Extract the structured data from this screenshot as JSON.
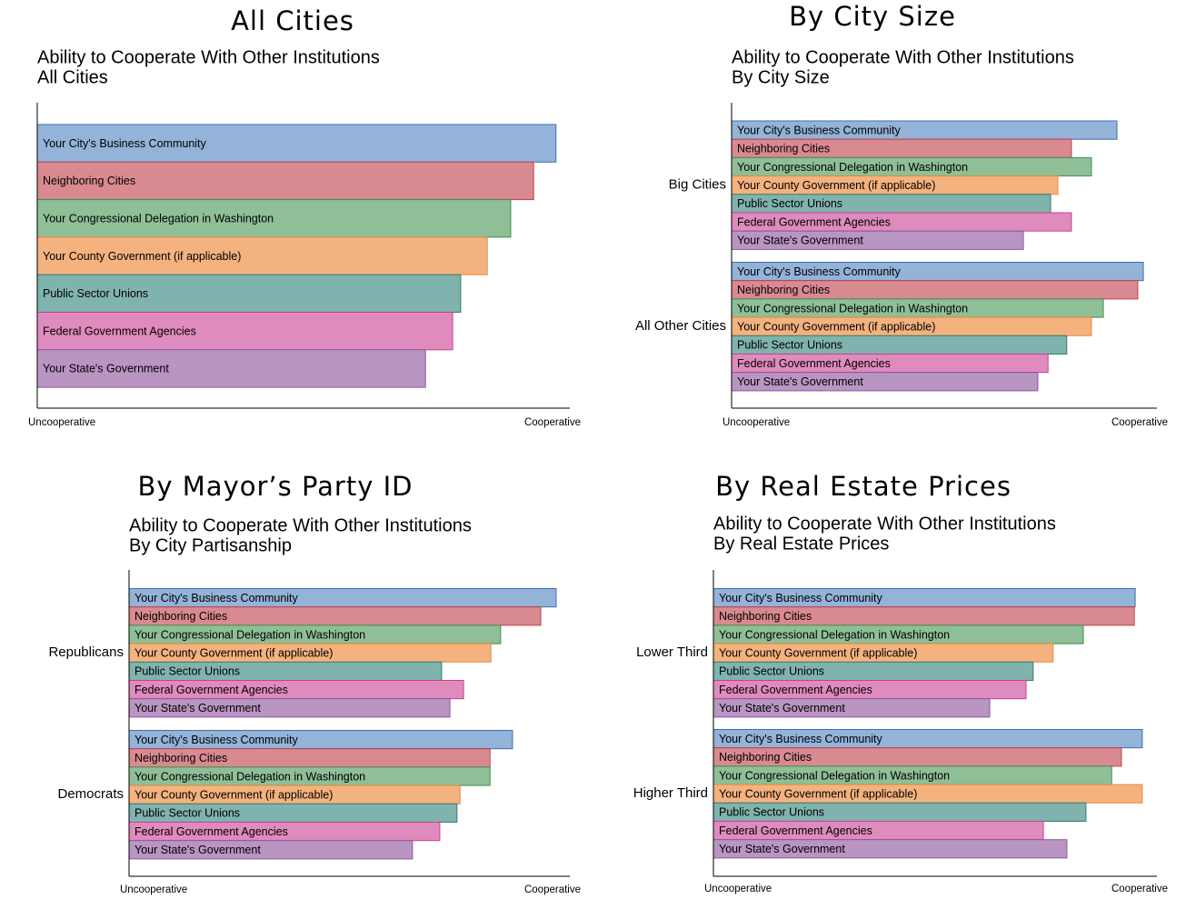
{
  "chart_data": [
    {
      "type": "bar",
      "heading": "All Cities",
      "title": "Ability to Cooperate With Other Institutions",
      "subtitle": "All Cities",
      "categories": [
        "Your City's Business Community",
        "Neighboring Cities",
        "Your Congressional Delegation in Washington",
        "Your County Government (if applicable)",
        "Public Sector Unions",
        "Federal Government Agencies",
        "Your State's Government"
      ],
      "colors": [
        "#93b3d8",
        "#d98a91",
        "#8fbf97",
        "#f4b27f",
        "#80b3ae",
        "#e08bbd",
        "#b995c2"
      ],
      "edge_colors": [
        "#3d6fb0",
        "#c0404e",
        "#3f8f52",
        "#ec8a3c",
        "#2f7d72",
        "#c8408f",
        "#8e55a0"
      ],
      "values": [
        97.4,
        93.2,
        88.9,
        84.5,
        79.5,
        78,
        72.9
      ],
      "xlim": [
        0,
        100
      ],
      "xticks": [
        {
          "value": 0,
          "label": "Uncooperative"
        },
        {
          "value": 100,
          "label": "Cooperative"
        }
      ]
    },
    {
      "type": "bar",
      "heading": "By City Size",
      "title": "Ability to Cooperate With Other Institutions",
      "subtitle": "By City Size",
      "categories": [
        "Your City's Business Community",
        "Neighboring Cities",
        "Your Congressional Delegation in Washington",
        "Your County Government (if applicable)",
        "Public Sector Unions",
        "Federal Government Agencies",
        "Your State's Government"
      ],
      "colors": [
        "#93b3d8",
        "#d98a91",
        "#8fbf97",
        "#f4b27f",
        "#80b3ae",
        "#e08bbd",
        "#b995c2"
      ],
      "edge_colors": [
        "#3d6fb0",
        "#c0404e",
        "#3f8f52",
        "#ec8a3c",
        "#2f7d72",
        "#c8408f",
        "#8e55a0"
      ],
      "series": [
        {
          "name": "Big Cities",
          "values": [
            90.6,
            79.9,
            84.6,
            76.7,
            75,
            79.9,
            68.6
          ]
        },
        {
          "name": "All Other Cities",
          "values": [
            96.8,
            95.5,
            87.4,
            84.6,
            78.8,
            74.4,
            72
          ]
        }
      ],
      "xlim": [
        0,
        100
      ],
      "xticks": [
        {
          "value": 0,
          "label": "Uncooperative"
        },
        {
          "value": 100,
          "label": "Cooperative"
        }
      ]
    },
    {
      "type": "bar",
      "heading": "By Mayor’s Party ID",
      "title": "Ability to Cooperate With Other Institutions",
      "subtitle": "By City Partisanship",
      "categories": [
        "Your City's Business Community",
        "Neighboring Cities",
        "Your Congressional Delegation in Washington",
        "Your County Government (if applicable)",
        "Public Sector Unions",
        "Federal Government Agencies",
        "Your State's Government"
      ],
      "colors": [
        "#93b3d8",
        "#d98a91",
        "#8fbf97",
        "#f4b27f",
        "#80b3ae",
        "#e08bbd",
        "#b995c2"
      ],
      "edge_colors": [
        "#3d6fb0",
        "#c0404e",
        "#3f8f52",
        "#ec8a3c",
        "#2f7d72",
        "#c8408f",
        "#8e55a0"
      ],
      "series": [
        {
          "name": "Republicans",
          "values": [
            96.9,
            93.4,
            84.3,
            82.1,
            70.9,
            75.9,
            72.8
          ]
        },
        {
          "name": "Democrats",
          "values": [
            87,
            81.9,
            81.9,
            75.1,
            74.4,
            70.5,
            64.3
          ]
        }
      ],
      "xlim": [
        0,
        100
      ],
      "xticks": [
        {
          "value": 0,
          "label": "Uncooperative"
        },
        {
          "value": 100,
          "label": "Cooperative"
        }
      ]
    },
    {
      "type": "bar",
      "heading": "By Real Estate Prices",
      "title": "Ability to Cooperate With Other Institutions",
      "subtitle": "By Real Estate Prices",
      "categories": [
        "Your City's Business Community",
        "Neighboring Cities",
        "Your Congressional Delegation in Washington",
        "Your County Government (if applicable)",
        "Public Sector Unions",
        "Federal Government Agencies",
        "Your State's Government"
      ],
      "colors": [
        "#93b3d8",
        "#d98a91",
        "#8fbf97",
        "#f4b27f",
        "#80b3ae",
        "#e08bbd",
        "#b995c2"
      ],
      "edge_colors": [
        "#3d6fb0",
        "#c0404e",
        "#3f8f52",
        "#ec8a3c",
        "#2f7d72",
        "#c8408f",
        "#8e55a0"
      ],
      "series": [
        {
          "name": "Lower Third",
          "values": [
            95.1,
            94.9,
            83.4,
            76.6,
            72.1,
            70.5,
            62.3
          ]
        },
        {
          "name": "Higher Third",
          "values": [
            96.7,
            92,
            89.8,
            96.7,
            84,
            74.4,
            79.7
          ]
        }
      ],
      "xlim": [
        0,
        100
      ],
      "xticks": [
        {
          "value": 0,
          "label": "Uncooperative"
        },
        {
          "value": 100,
          "label": "Cooperative"
        }
      ]
    }
  ]
}
